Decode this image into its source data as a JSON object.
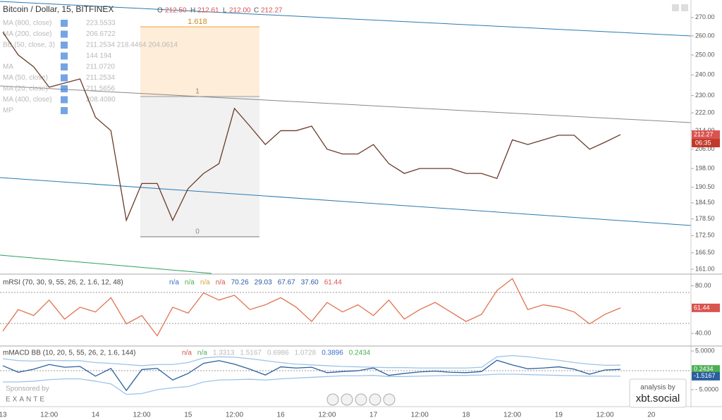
{
  "header": {
    "symbol": "Bitcoin / Dollar, 15, BITFINEX",
    "o_label": "O",
    "open": "212.50",
    "h_label": "H",
    "high": "212.61",
    "l_label": "L",
    "low": "212.00",
    "c_label": "C",
    "close": "212.27"
  },
  "indicators": [
    {
      "name": "MA (800, close)",
      "value": "223.5533"
    },
    {
      "name": "MA (200, close)",
      "value": "206.6722"
    },
    {
      "name": "BB (50, close, 3)",
      "value": "211.2534 218.4464 204.0614"
    },
    {
      "name": "",
      "value": "144 194"
    },
    {
      "name": "MA",
      "value": "211.0720"
    },
    {
      "name": "MA (50, close)",
      "value": "211.2534"
    },
    {
      "name": "MA (20, close)",
      "value": "211.5656"
    },
    {
      "name": "MA (400, close)",
      "value": "208.4080"
    },
    {
      "name": "MP",
      "value": ""
    }
  ],
  "fib": {
    "top": "1.618",
    "mid": "1",
    "bottom": "0"
  },
  "time_axis": {
    "labels": [
      "13",
      "12:00",
      "14",
      "12:00",
      "15",
      "12:00",
      "16",
      "12:00",
      "17",
      "12:00",
      "18",
      "12:00",
      "19",
      "12:00",
      "20"
    ]
  },
  "price_time": "06:35",
  "chart_data": [
    {
      "type": "line",
      "log": true,
      "color": "#6b3a2a",
      "values": [
        262,
        250,
        244,
        234,
        236,
        238,
        220,
        214,
        178,
        192,
        192,
        178,
        190,
        196,
        200,
        224,
        216,
        208,
        214,
        214,
        216,
        206,
        204,
        204,
        208,
        200,
        196,
        198,
        198,
        198,
        196,
        196,
        194,
        210,
        208,
        210,
        212,
        212,
        206,
        209,
        212.27
      ],
      "ylim": [
        159.6,
        279.9
      ],
      "yticks": [
        {
          "value": 270,
          "label": "270.00"
        },
        {
          "value": 260,
          "label": "260.00"
        },
        {
          "value": 250,
          "label": "250.00"
        },
        {
          "value": 240,
          "label": "240.00"
        },
        {
          "value": 230,
          "label": "230.00"
        },
        {
          "value": 222,
          "label": "222.00"
        },
        {
          "value": 214,
          "label": "214.00"
        },
        {
          "value": 206,
          "label": "206.00"
        },
        {
          "value": 198,
          "label": "198.00"
        },
        {
          "value": 190.5,
          "label": "190.50"
        },
        {
          "value": 184.5,
          "label": "184.50"
        },
        {
          "value": 178.5,
          "label": "178.50"
        },
        {
          "value": 172.5,
          "label": "172.50"
        },
        {
          "value": 166.5,
          "label": "166.50"
        },
        {
          "value": 161,
          "label": "161.00"
        }
      ]
    },
    {
      "type": "line",
      "title": "mRSI (70, 30, 9, 55, 26, 2, 1.6, 12, 48)",
      "legend_values": [
        "n/a",
        "n/a",
        "n/a",
        "n/a",
        "70.26",
        "29.03",
        "67.67",
        "37.60",
        "61.44"
      ],
      "legend_colors": [
        "#3b6fc4",
        "#4caf50",
        "#e0a040",
        "#d9534f",
        "#2a5aa0",
        "#2a5aa0",
        "#2a5aa0",
        "#2a5aa0",
        "#d9534f"
      ],
      "color": "#e0734f",
      "values": [
        42,
        60,
        55,
        68,
        52,
        62,
        58,
        70,
        48,
        55,
        38,
        62,
        57,
        74,
        68,
        72,
        60,
        64,
        70,
        62,
        50,
        66,
        58,
        64,
        55,
        68,
        52,
        60,
        66,
        58,
        50,
        56,
        76,
        86,
        60,
        64,
        62,
        58,
        48,
        56,
        61.44
      ],
      "ylim": [
        30,
        88
      ],
      "yticks": [
        {
          "value": 80,
          "label": "80.00"
        },
        {
          "value": 40,
          "label": "40.00"
        }
      ]
    },
    {
      "type": "line",
      "title": "mMACD BB (10, 20, 5, 55, 26, 2, 1.6, 144)",
      "legend_values": [
        "n/a",
        "n/a",
        "1.3313",
        "1.5167",
        "0.6986",
        "1.0728",
        "0.3896",
        "0.2434"
      ],
      "legend_colors": [
        "#d9534f",
        "#4caf50",
        "#b9b9b9",
        "#b9b9b9",
        "#b9b9b9",
        "#b9b9b9",
        "#3b6fc4",
        "#4caf50"
      ],
      "ylim": [
        -9,
        6.1
      ],
      "yticks": [
        {
          "value": 5,
          "label": "5.0000"
        },
        {
          "value": -5,
          "label": "- 5.0000"
        }
      ],
      "series": [
        {
          "color": "#2a5f9e",
          "values": [
            1.2,
            -0.5,
            0.3,
            1.5,
            0.8,
            1.0,
            -1.5,
            0.5,
            -5.2,
            0.2,
            0.5,
            -2.5,
            -0.8,
            1.8,
            2.5,
            1.6,
            0.3,
            -1.2,
            0.9,
            0.6,
            0.8,
            -0.6,
            -0.3,
            -0.1,
            0.6,
            -1.3,
            -0.8,
            -0.4,
            -0.2,
            -0.5,
            -0.6,
            -0.3,
            2.6,
            1.4,
            0.4,
            0.6,
            0.9,
            0.3,
            -1.0,
            0.1,
            0.2434
          ],
          "value_label_color": "#4caf50"
        },
        {
          "color": "#9cc3ea",
          "values": [
            3,
            2.5,
            2.4,
            2.6,
            2.5,
            2.5,
            2.0,
            1.8,
            1.5,
            1.2,
            1.5,
            1.5,
            2.0,
            3.2,
            3.5,
            3.4,
            3.0,
            2.5,
            2.0,
            1.6,
            1.4,
            1.2,
            1.0,
            0.9,
            0.8,
            0.7,
            0.7,
            0.6,
            0.6,
            0.6,
            0.6,
            0.8,
            3.5,
            3.8,
            3.5,
            3.0,
            2.6,
            2.0,
            1.6,
            1.3,
            1.3313
          ]
        },
        {
          "color": "#9cc3ea",
          "values": [
            -3,
            -3,
            -2.8,
            -2.4,
            -2.2,
            -2.2,
            -2.8,
            -3.5,
            -6.2,
            -6.0,
            -5.0,
            -4.5,
            -4.2,
            -3.0,
            -2.5,
            -2.4,
            -2.3,
            -2.5,
            -2.2,
            -2.0,
            -1.8,
            -1.6,
            -1.4,
            -1.4,
            -1.3,
            -1.6,
            -1.6,
            -1.5,
            -1.4,
            -1.3,
            -1.3,
            -1.2,
            -1.0,
            -1.0,
            -1.1,
            -1.2,
            -1.3,
            -1.4,
            -1.5,
            -1.5,
            -1.5167
          ],
          "value_label_color": "#2a5f9e"
        }
      ]
    }
  ],
  "sponsor": {
    "label": "Sponsored by",
    "name": "EXANTE"
  },
  "brand": {
    "label": "analysis by",
    "name": "xbt.social"
  }
}
